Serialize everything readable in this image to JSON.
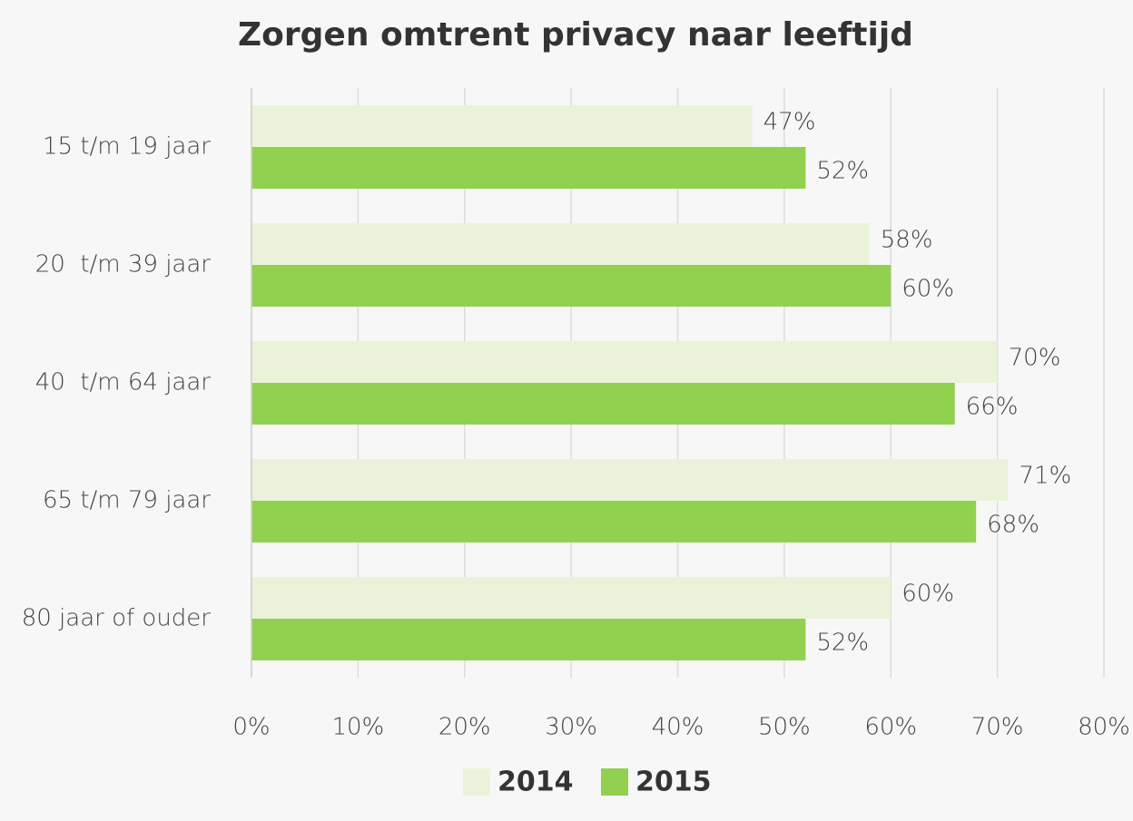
{
  "chart_data": {
    "type": "hbar",
    "title": "Zorgen omtrent privacy naar leeftijd",
    "categories": [
      "15 t/m 19 jaar",
      "20  t/m 39 jaar",
      "40  t/m 64 jaar",
      "65 t/m 79 jaar",
      "80 jaar of ouder"
    ],
    "series": [
      {
        "name": "2014",
        "color": "#eaf3da",
        "values": [
          47,
          58,
          70,
          71,
          60
        ],
        "value_labels": [
          "47%",
          "58%",
          "70%",
          "71%",
          "60%"
        ]
      },
      {
        "name": "2015",
        "color": "#92d050",
        "values": [
          52,
          60,
          66,
          68,
          52
        ],
        "value_labels": [
          "52%",
          "60%",
          "66%",
          "68%",
          "52%"
        ]
      }
    ],
    "xlim": [
      0,
      80
    ],
    "xticks": [
      {
        "value": 0,
        "label": "0%"
      },
      {
        "value": 10,
        "label": "10%"
      },
      {
        "value": 20,
        "label": "20%"
      },
      {
        "value": 30,
        "label": "30%"
      },
      {
        "value": 40,
        "label": "40%"
      },
      {
        "value": 50,
        "label": "50%"
      },
      {
        "value": 60,
        "label": "60%"
      },
      {
        "value": 70,
        "label": "70%"
      },
      {
        "value": 80,
        "label": "80%"
      }
    ],
    "grid": true,
    "legend": "bottom"
  }
}
